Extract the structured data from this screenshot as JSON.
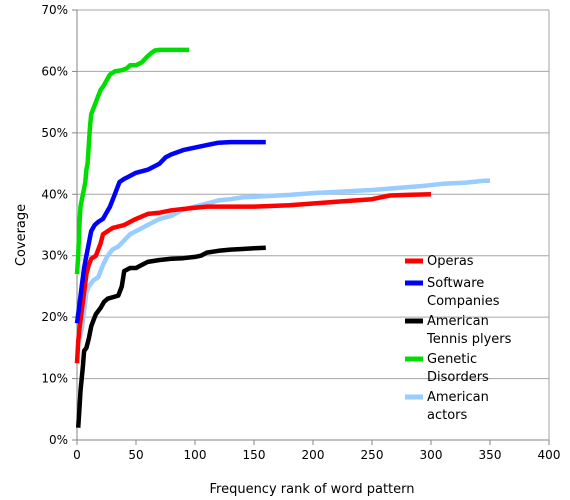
{
  "chart_data": {
    "type": "line",
    "title": "",
    "xlabel": "Frequency rank of word pattern",
    "ylabel": "Coverage",
    "xlim": [
      0,
      400
    ],
    "ylim": [
      0,
      70
    ],
    "x_ticks": [
      "0",
      "50",
      "100",
      "150",
      "200",
      "250",
      "300",
      "350",
      "400"
    ],
    "y_ticks": [
      "0%",
      "10%",
      "20%",
      "30%",
      "40%",
      "50%",
      "60%",
      "70%"
    ],
    "grid": "horizontal",
    "legend_position": "right",
    "series": [
      {
        "name": "Operas",
        "color": "#ff0000",
        "points": [
          [
            0,
            12.5
          ],
          [
            1,
            16
          ],
          [
            2,
            18
          ],
          [
            4,
            21
          ],
          [
            6,
            24
          ],
          [
            8,
            27
          ],
          [
            10,
            28.5
          ],
          [
            12,
            29.5
          ],
          [
            16,
            30
          ],
          [
            20,
            32
          ],
          [
            22,
            33.5
          ],
          [
            26,
            34
          ],
          [
            30,
            34.5
          ],
          [
            40,
            35
          ],
          [
            45,
            35.5
          ],
          [
            50,
            36
          ],
          [
            60,
            36.8
          ],
          [
            70,
            37
          ],
          [
            80,
            37.4
          ],
          [
            90,
            37.6
          ],
          [
            100,
            37.8
          ],
          [
            110,
            38
          ],
          [
            150,
            38
          ],
          [
            180,
            38.2
          ],
          [
            200,
            38.5
          ],
          [
            220,
            38.8
          ],
          [
            250,
            39.2
          ],
          [
            265,
            39.8
          ],
          [
            280,
            39.9
          ],
          [
            300,
            40
          ]
        ]
      },
      {
        "name": "Software Companies",
        "color": "#0000ff",
        "points": [
          [
            0,
            19
          ],
          [
            2,
            22
          ],
          [
            4,
            25
          ],
          [
            6,
            28
          ],
          [
            8,
            30
          ],
          [
            10,
            32
          ],
          [
            12,
            34
          ],
          [
            15,
            35
          ],
          [
            18,
            35.5
          ],
          [
            22,
            36
          ],
          [
            25,
            37
          ],
          [
            28,
            38
          ],
          [
            32,
            40
          ],
          [
            36,
            42
          ],
          [
            40,
            42.5
          ],
          [
            45,
            43
          ],
          [
            50,
            43.5
          ],
          [
            60,
            44
          ],
          [
            70,
            45
          ],
          [
            75,
            46
          ],
          [
            80,
            46.5
          ],
          [
            90,
            47.2
          ],
          [
            100,
            47.6
          ],
          [
            110,
            48
          ],
          [
            120,
            48.4
          ],
          [
            130,
            48.5
          ],
          [
            160,
            48.5
          ]
        ]
      },
      {
        "name": "American Tennis plyers",
        "color": "#000000",
        "points": [
          [
            1,
            2
          ],
          [
            2,
            5
          ],
          [
            3,
            8
          ],
          [
            5,
            12
          ],
          [
            6,
            14.5
          ],
          [
            8,
            15
          ],
          [
            10,
            16.5
          ],
          [
            12,
            18.5
          ],
          [
            14,
            19.5
          ],
          [
            16,
            20.5
          ],
          [
            20,
            21.5
          ],
          [
            23,
            22.5
          ],
          [
            26,
            23
          ],
          [
            35,
            23.5
          ],
          [
            38,
            25
          ],
          [
            40,
            27.5
          ],
          [
            45,
            28
          ],
          [
            50,
            28
          ],
          [
            55,
            28.5
          ],
          [
            60,
            29
          ],
          [
            70,
            29.3
          ],
          [
            80,
            29.5
          ],
          [
            90,
            29.6
          ],
          [
            100,
            29.8
          ],
          [
            105,
            30
          ],
          [
            110,
            30.5
          ],
          [
            120,
            30.8
          ],
          [
            130,
            31
          ],
          [
            140,
            31.1
          ],
          [
            150,
            31.2
          ],
          [
            160,
            31.3
          ]
        ]
      },
      {
        "name": "Genetic Disorders",
        "color": "#00dd00",
        "points": [
          [
            0,
            27
          ],
          [
            1,
            30
          ],
          [
            2,
            35
          ],
          [
            3,
            38
          ],
          [
            4,
            39
          ],
          [
            5,
            40
          ],
          [
            7,
            42
          ],
          [
            8,
            44
          ],
          [
            9,
            45
          ],
          [
            10,
            48
          ],
          [
            11,
            51
          ],
          [
            12,
            53
          ],
          [
            14,
            54
          ],
          [
            16,
            55
          ],
          [
            18,
            56
          ],
          [
            20,
            57
          ],
          [
            22,
            57.5
          ],
          [
            25,
            58.5
          ],
          [
            28,
            59.5
          ],
          [
            32,
            60
          ],
          [
            38,
            60.2
          ],
          [
            42,
            60.5
          ],
          [
            45,
            61
          ],
          [
            50,
            61
          ],
          [
            55,
            61.5
          ],
          [
            60,
            62.5
          ],
          [
            63,
            63
          ],
          [
            66,
            63.4
          ],
          [
            70,
            63.5
          ],
          [
            80,
            63.5
          ],
          [
            95,
            63.5
          ]
        ]
      },
      {
        "name": "American actors",
        "color": "#99ccff",
        "points": [
          [
            2,
            16.5
          ],
          [
            4,
            18
          ],
          [
            6,
            21
          ],
          [
            8,
            24
          ],
          [
            10,
            25
          ],
          [
            14,
            26
          ],
          [
            18,
            26.5
          ],
          [
            22,
            28.5
          ],
          [
            26,
            30
          ],
          [
            30,
            31
          ],
          [
            35,
            31.5
          ],
          [
            40,
            32.5
          ],
          [
            45,
            33.5
          ],
          [
            50,
            34
          ],
          [
            55,
            34.5
          ],
          [
            60,
            35
          ],
          [
            65,
            35.5
          ],
          [
            70,
            36
          ],
          [
            80,
            36.5
          ],
          [
            90,
            37.5
          ],
          [
            100,
            38
          ],
          [
            110,
            38.5
          ],
          [
            120,
            39
          ],
          [
            130,
            39.2
          ],
          [
            140,
            39.5
          ],
          [
            160,
            39.7
          ],
          [
            180,
            39.9
          ],
          [
            200,
            40.2
          ],
          [
            230,
            40.5
          ],
          [
            250,
            40.7
          ],
          [
            270,
            41
          ],
          [
            290,
            41.3
          ],
          [
            310,
            41.7
          ],
          [
            330,
            41.9
          ],
          [
            345,
            42.2
          ],
          [
            350,
            42.2
          ]
        ]
      }
    ]
  },
  "legend": {
    "items": [
      {
        "lines": [
          "Operas"
        ],
        "color": "#ff0000"
      },
      {
        "lines": [
          "Software",
          "Companies"
        ],
        "color": "#0000ff"
      },
      {
        "lines": [
          "American",
          "Tennis plyers"
        ],
        "color": "#000000"
      },
      {
        "lines": [
          "Genetic",
          "Disorders"
        ],
        "color": "#00dd00"
      },
      {
        "lines": [
          "American",
          "actors"
        ],
        "color": "#99ccff"
      }
    ]
  }
}
